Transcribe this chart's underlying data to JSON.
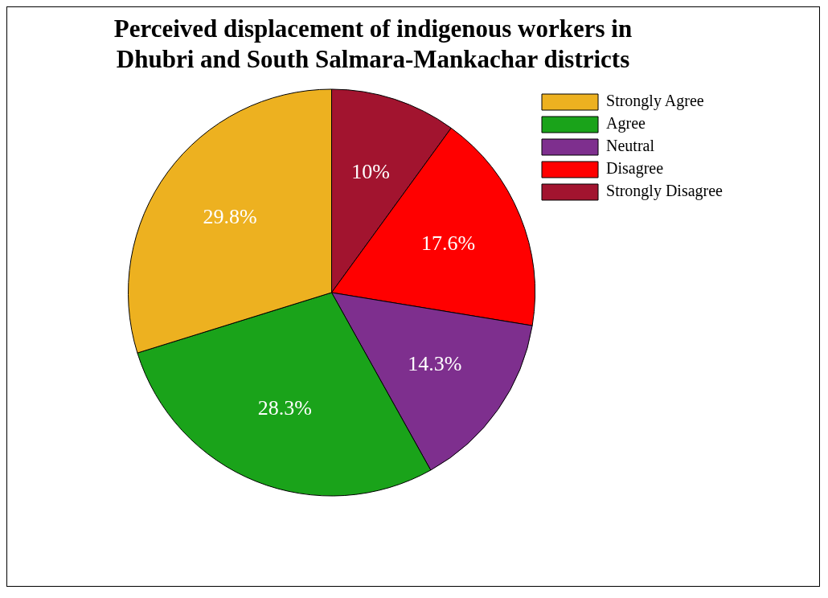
{
  "chart_data": {
    "type": "pie",
    "title": "Perceived displacement of indigenous workers in\nDhubri and South Salmara-Mankachar districts",
    "categories": [
      "Strongly Agree",
      "Agree",
      "Neutral",
      "Disagree",
      "Strongly Disagree"
    ],
    "values": [
      29.8,
      28.3,
      14.3,
      17.6,
      10
    ],
    "colors": [
      "#edb120",
      "#1aa31a",
      "#7e2f8e",
      "#ff0000",
      "#a2142f"
    ],
    "value_labels": [
      "29.8%",
      "28.3%",
      "14.3%",
      "17.6%",
      "10%"
    ],
    "legend": "top right"
  }
}
